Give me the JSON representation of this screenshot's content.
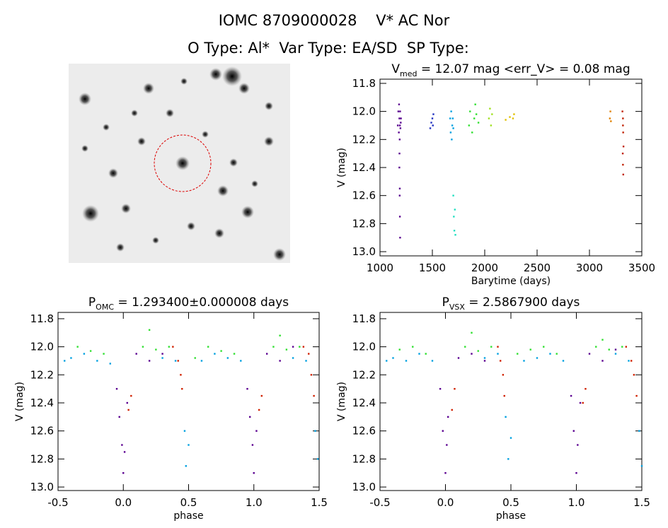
{
  "header": {
    "title": "IOMC 8709000028    V* AC Nor",
    "subtitle": "O Type: Al*  Var Type: EA/SD  SP Type:"
  },
  "chart_data": [
    {
      "type": "scatter",
      "title": "V",
      "title_sub": "med",
      "title_rest": " = 12.07 mag <err_V> = 0.08 mag",
      "x_label": "Barytime (days)",
      "y_label": "V (mag)",
      "xlim": [
        1000,
        3500
      ],
      "xticks": [
        1000,
        1500,
        2000,
        2500,
        3000,
        3500
      ],
      "ylim": [
        11.77,
        13.03
      ],
      "y_reversed": true,
      "yticks": [
        11.8,
        {
          "value": 12,
          "label": "12.0"
        },
        12.2,
        12.4,
        12.6,
        12.8,
        {
          "value": 13,
          "label": "13.0"
        }
      ],
      "series": [
        {
          "color": "#5a0090",
          "x": [
            1170,
            1175,
            1180,
            1182,
            1185,
            1188,
            1190,
            1192,
            1195,
            1198,
            1200,
            1185,
            1188,
            1190,
            1192,
            1186,
            1189
          ],
          "values": [
            12.1,
            12.0,
            12.15,
            11.95,
            12.05,
            12.2,
            12.1,
            12.0,
            12.12,
            12.08,
            12.05,
            12.4,
            12.6,
            12.75,
            12.9,
            12.3,
            12.55
          ]
        },
        {
          "color": "#2030c0",
          "x": [
            1480,
            1490,
            1500,
            1505,
            1510
          ],
          "values": [
            12.12,
            12.08,
            12.05,
            12.1,
            12.02
          ]
        },
        {
          "color": "#00a0e0",
          "x": [
            1670,
            1675,
            1680,
            1685,
            1690,
            1695,
            1700
          ],
          "values": [
            12.05,
            12.15,
            12.0,
            12.2,
            12.1,
            12.05,
            12.12
          ]
        },
        {
          "color": "#20e0c0",
          "x": [
            1700,
            1705,
            1710,
            1715,
            1720
          ],
          "values": [
            12.6,
            12.75,
            12.85,
            12.7,
            12.88
          ]
        },
        {
          "color": "#30e030",
          "x": [
            1850,
            1860,
            1880,
            1900,
            1910,
            1920,
            1940
          ],
          "values": [
            12.1,
            12.0,
            12.15,
            12.05,
            11.95,
            12.02,
            12.08
          ]
        },
        {
          "color": "#a0e020",
          "x": [
            2040,
            2050,
            2060,
            2070
          ],
          "values": [
            12.05,
            11.98,
            12.1,
            12.02
          ]
        },
        {
          "color": "#e0c000",
          "x": [
            2200,
            2240,
            2270,
            2280
          ],
          "values": [
            12.06,
            12.04,
            12.05,
            12.02
          ]
        },
        {
          "color": "#e08000",
          "x": [
            3195,
            3200,
            3205
          ],
          "values": [
            12.05,
            12.0,
            12.07
          ]
        },
        {
          "color": "#c02000",
          "x": [
            3315,
            3320,
            3322,
            3325,
            3318,
            3320,
            3323,
            3320
          ],
          "values": [
            12.0,
            12.05,
            12.15,
            12.25,
            12.3,
            12.38,
            12.45,
            12.1
          ]
        }
      ]
    },
    {
      "type": "scatter",
      "title": "P",
      "title_sub": "OMC",
      "title_rest": " = 1.293400±0.000008 days",
      "x_label": "phase",
      "y_label": "V (mag)",
      "xlim": [
        -0.5,
        1.5
      ],
      "xticks": [
        -0.5,
        {
          "value": 0,
          "label": "0.0"
        },
        0.5,
        {
          "value": 1,
          "label": "1.0"
        },
        1.5
      ],
      "ylim": [
        11.755,
        13.025
      ],
      "y_reversed": true,
      "yticks": [
        11.8,
        {
          "value": 12,
          "label": "12.0"
        },
        12.2,
        12.4,
        12.6,
        12.8,
        {
          "value": 13,
          "label": "13.0"
        }
      ],
      "series": [
        {
          "color": "#5a0090",
          "x": [
            -0.05,
            -0.03,
            -0.01,
            0.0,
            0.01,
            0.03,
            0.1,
            0.2,
            0.3,
            0.95,
            0.97,
            0.99,
            1.0,
            1.02,
            1.1,
            1.2,
            1.3
          ],
          "values": [
            12.3,
            12.5,
            12.7,
            12.9,
            12.75,
            12.4,
            12.05,
            12.1,
            12.05,
            12.3,
            12.5,
            12.7,
            12.9,
            12.6,
            12.05,
            12.1,
            12.0
          ]
        },
        {
          "color": "#00a0e0",
          "x": [
            -0.45,
            -0.4,
            -0.3,
            -0.2,
            -0.1,
            0.3,
            0.4,
            0.47,
            0.48,
            0.5,
            0.6,
            0.7,
            0.8,
            0.9,
            1.3,
            1.4,
            1.47,
            1.49
          ],
          "values": [
            12.1,
            12.08,
            12.05,
            12.1,
            12.12,
            12.08,
            12.1,
            12.6,
            12.85,
            12.7,
            12.1,
            12.05,
            12.08,
            12.1,
            12.08,
            12.1,
            12.6,
            12.8
          ]
        },
        {
          "color": "#30e030",
          "x": [
            -0.35,
            -0.25,
            -0.15,
            0.15,
            0.2,
            0.25,
            0.35,
            0.55,
            0.65,
            0.75,
            0.85,
            1.15,
            1.2,
            1.25,
            1.35
          ],
          "values": [
            12.0,
            12.03,
            12.05,
            12.0,
            11.88,
            12.02,
            12.0,
            12.08,
            12.0,
            12.03,
            12.05,
            12.0,
            11.92,
            12.02,
            12.0
          ]
        },
        {
          "color": "#d02000",
          "x": [
            0.04,
            0.06,
            0.38,
            0.42,
            0.44,
            0.45,
            1.04,
            1.06,
            1.38,
            1.42,
            1.44,
            1.46
          ],
          "values": [
            12.45,
            12.35,
            12.0,
            12.1,
            12.2,
            12.3,
            12.45,
            12.35,
            12.0,
            12.05,
            12.2,
            12.35
          ]
        }
      ]
    },
    {
      "type": "scatter",
      "title": "P",
      "title_sub": "VSX",
      "title_rest": " = 2.5867900 days",
      "x_label": "phase",
      "y_label": "V (mag)",
      "xlim": [
        -0.5,
        1.5
      ],
      "xticks": [
        -0.5,
        {
          "value": 0,
          "label": "0.0"
        },
        0.5,
        {
          "value": 1,
          "label": "1.0"
        },
        1.5
      ],
      "ylim": [
        11.755,
        13.025
      ],
      "y_reversed": true,
      "yticks": [
        11.8,
        {
          "value": 12,
          "label": "12.0"
        },
        12.2,
        12.4,
        12.6,
        12.8,
        {
          "value": 13,
          "label": "13.0"
        }
      ],
      "series": [
        {
          "color": "#5a0090",
          "x": [
            -0.04,
            -0.02,
            0.0,
            0.01,
            0.02,
            0.1,
            0.2,
            0.3,
            0.96,
            0.98,
            1.0,
            1.01,
            1.03,
            1.1,
            1.2,
            1.3
          ],
          "values": [
            12.3,
            12.6,
            12.9,
            12.7,
            12.5,
            12.08,
            12.05,
            12.1,
            12.35,
            12.6,
            12.9,
            12.7,
            12.4,
            12.05,
            12.1,
            12.02
          ]
        },
        {
          "color": "#00a0e0",
          "x": [
            -0.45,
            -0.4,
            -0.3,
            -0.2,
            -0.1,
            0.3,
            0.4,
            0.46,
            0.48,
            0.5,
            0.6,
            0.7,
            0.8,
            0.9,
            1.3,
            1.4,
            1.48,
            1.5
          ],
          "values": [
            12.1,
            12.08,
            12.1,
            12.05,
            12.1,
            12.08,
            12.05,
            12.5,
            12.8,
            12.65,
            12.1,
            12.08,
            12.05,
            12.1,
            12.05,
            12.1,
            12.6,
            12.85
          ]
        },
        {
          "color": "#30e030",
          "x": [
            -0.35,
            -0.25,
            -0.15,
            0.15,
            0.2,
            0.25,
            0.35,
            0.55,
            0.65,
            0.75,
            0.85,
            1.15,
            1.2,
            1.25,
            1.35
          ],
          "values": [
            12.02,
            12.0,
            12.05,
            12.0,
            11.9,
            12.03,
            12.0,
            12.05,
            12.02,
            12.0,
            12.05,
            12.0,
            11.95,
            12.02,
            12.0
          ]
        },
        {
          "color": "#d02000",
          "x": [
            0.05,
            0.07,
            0.4,
            0.42,
            0.44,
            0.45,
            1.05,
            1.07,
            1.38,
            1.42,
            1.44,
            1.46
          ],
          "values": [
            12.45,
            12.3,
            12.0,
            12.1,
            12.2,
            12.35,
            12.4,
            12.3,
            12.0,
            12.1,
            12.2,
            12.35
          ]
        }
      ]
    }
  ]
}
